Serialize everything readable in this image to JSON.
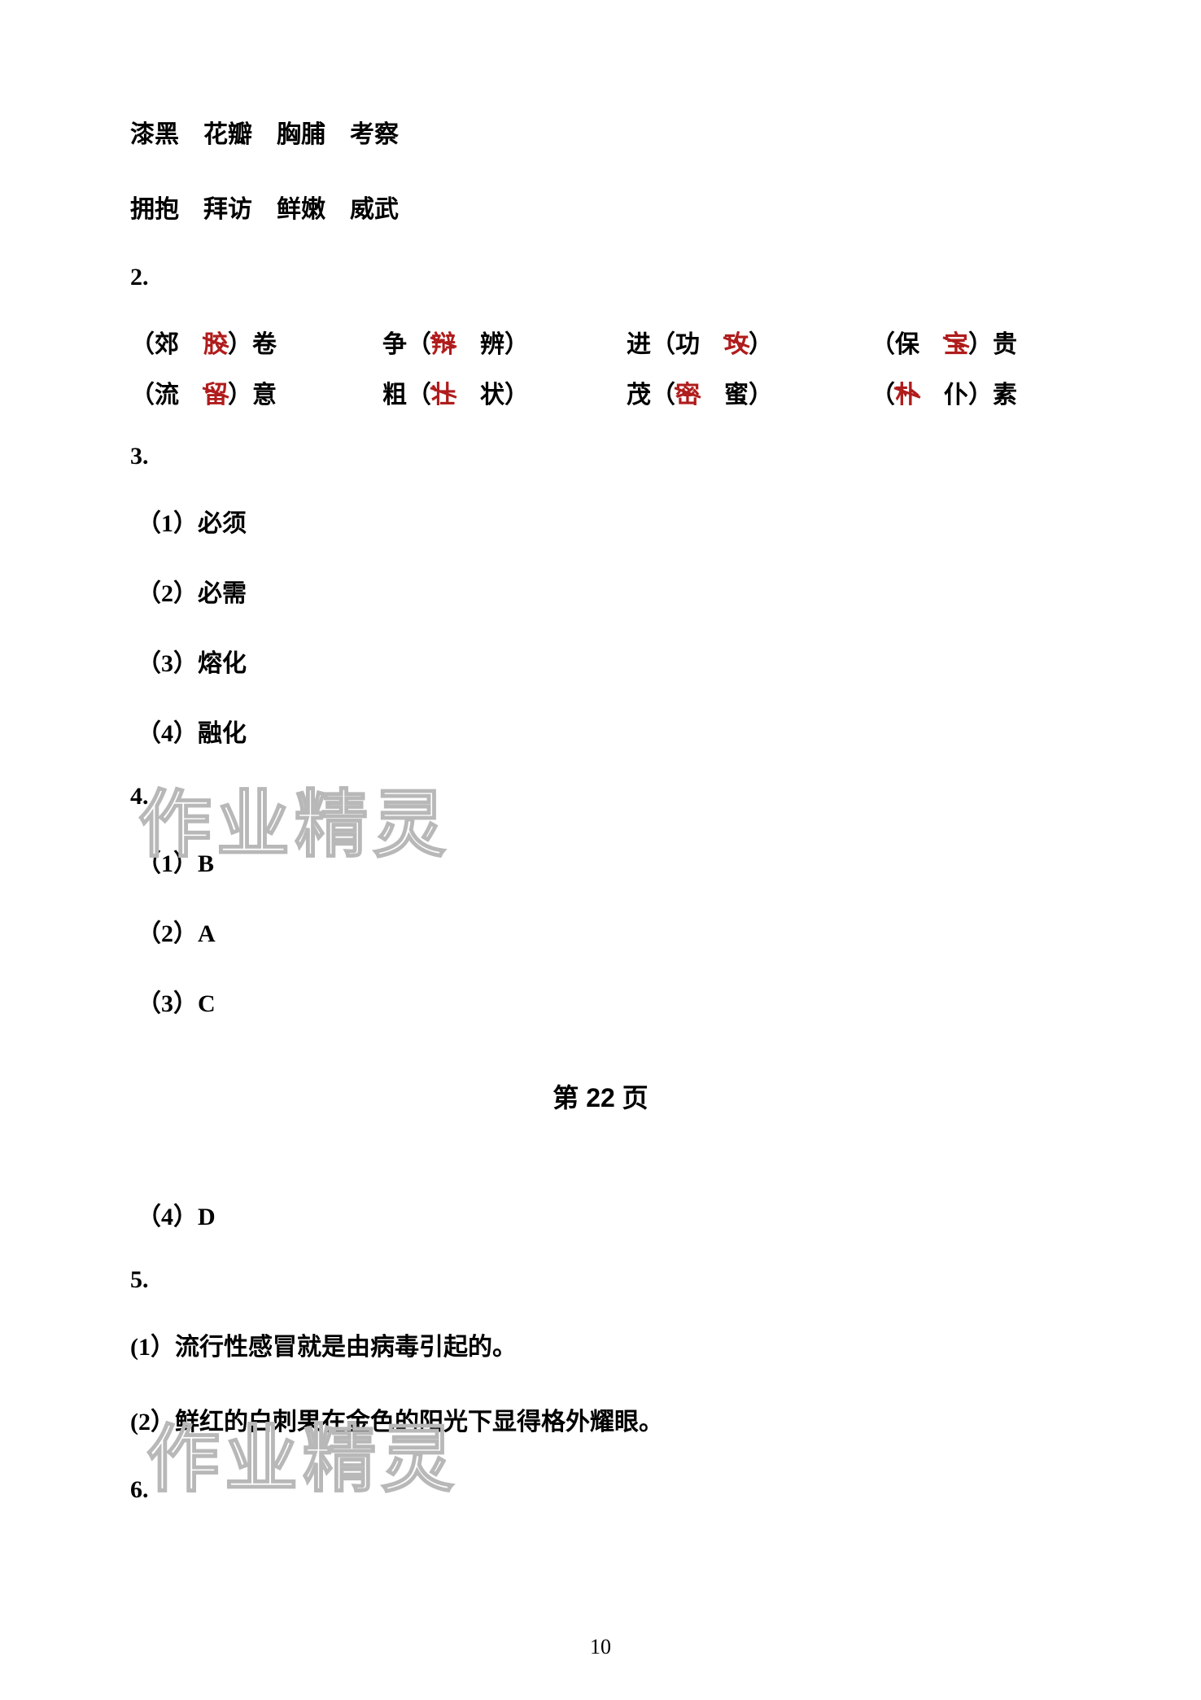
{
  "words_line1": "漆黑　花瓣　胸脯　考察",
  "words_line2": "拥抱　拜访　鲜嫩　威武",
  "section2_num": "2.",
  "brackets": {
    "row1": {
      "c1_pre": "（郊　",
      "c1_strike": "胶",
      "c1_post": "）卷",
      "c2_pre": "争（",
      "c2_strike": "辩",
      "c2_post": "　辨）",
      "c3_pre": "进（功　",
      "c3_strike": "攻",
      "c3_post": "）",
      "c4_pre": "（保　",
      "c4_strike": "宝",
      "c4_post": "）贵"
    },
    "row2": {
      "c1_pre": "（流　",
      "c1_strike": "留",
      "c1_post": "）意",
      "c2_pre": "粗（",
      "c2_strike": "壮",
      "c2_post": "　状）",
      "c3_pre": "茂（",
      "c3_strike": "密",
      "c3_post": "　蜜）",
      "c4_pre": "（",
      "c4_strike": "朴",
      "c4_post": "　仆）素"
    }
  },
  "section3_num": "3.",
  "section3_items": {
    "i1": "（1）必须",
    "i2": "（2）必需",
    "i3": "（3）熔化",
    "i4": "（4）融化"
  },
  "section4_num": "4.",
  "section4_items": {
    "i1": "（1）B",
    "i2": "（2）A",
    "i3": "（3）C"
  },
  "page_label": "第 22 页",
  "section4_i4": "（4）D",
  "section5_num": "5.",
  "section5_items": {
    "i1": "(1）流行性感冒就是由病毒引起的。",
    "i2": "(2）鲜红的白刺果在金色的阳光下显得格外耀眼。"
  },
  "section6_num": "6.",
  "page_number": "10",
  "watermark_text": "作业精灵"
}
